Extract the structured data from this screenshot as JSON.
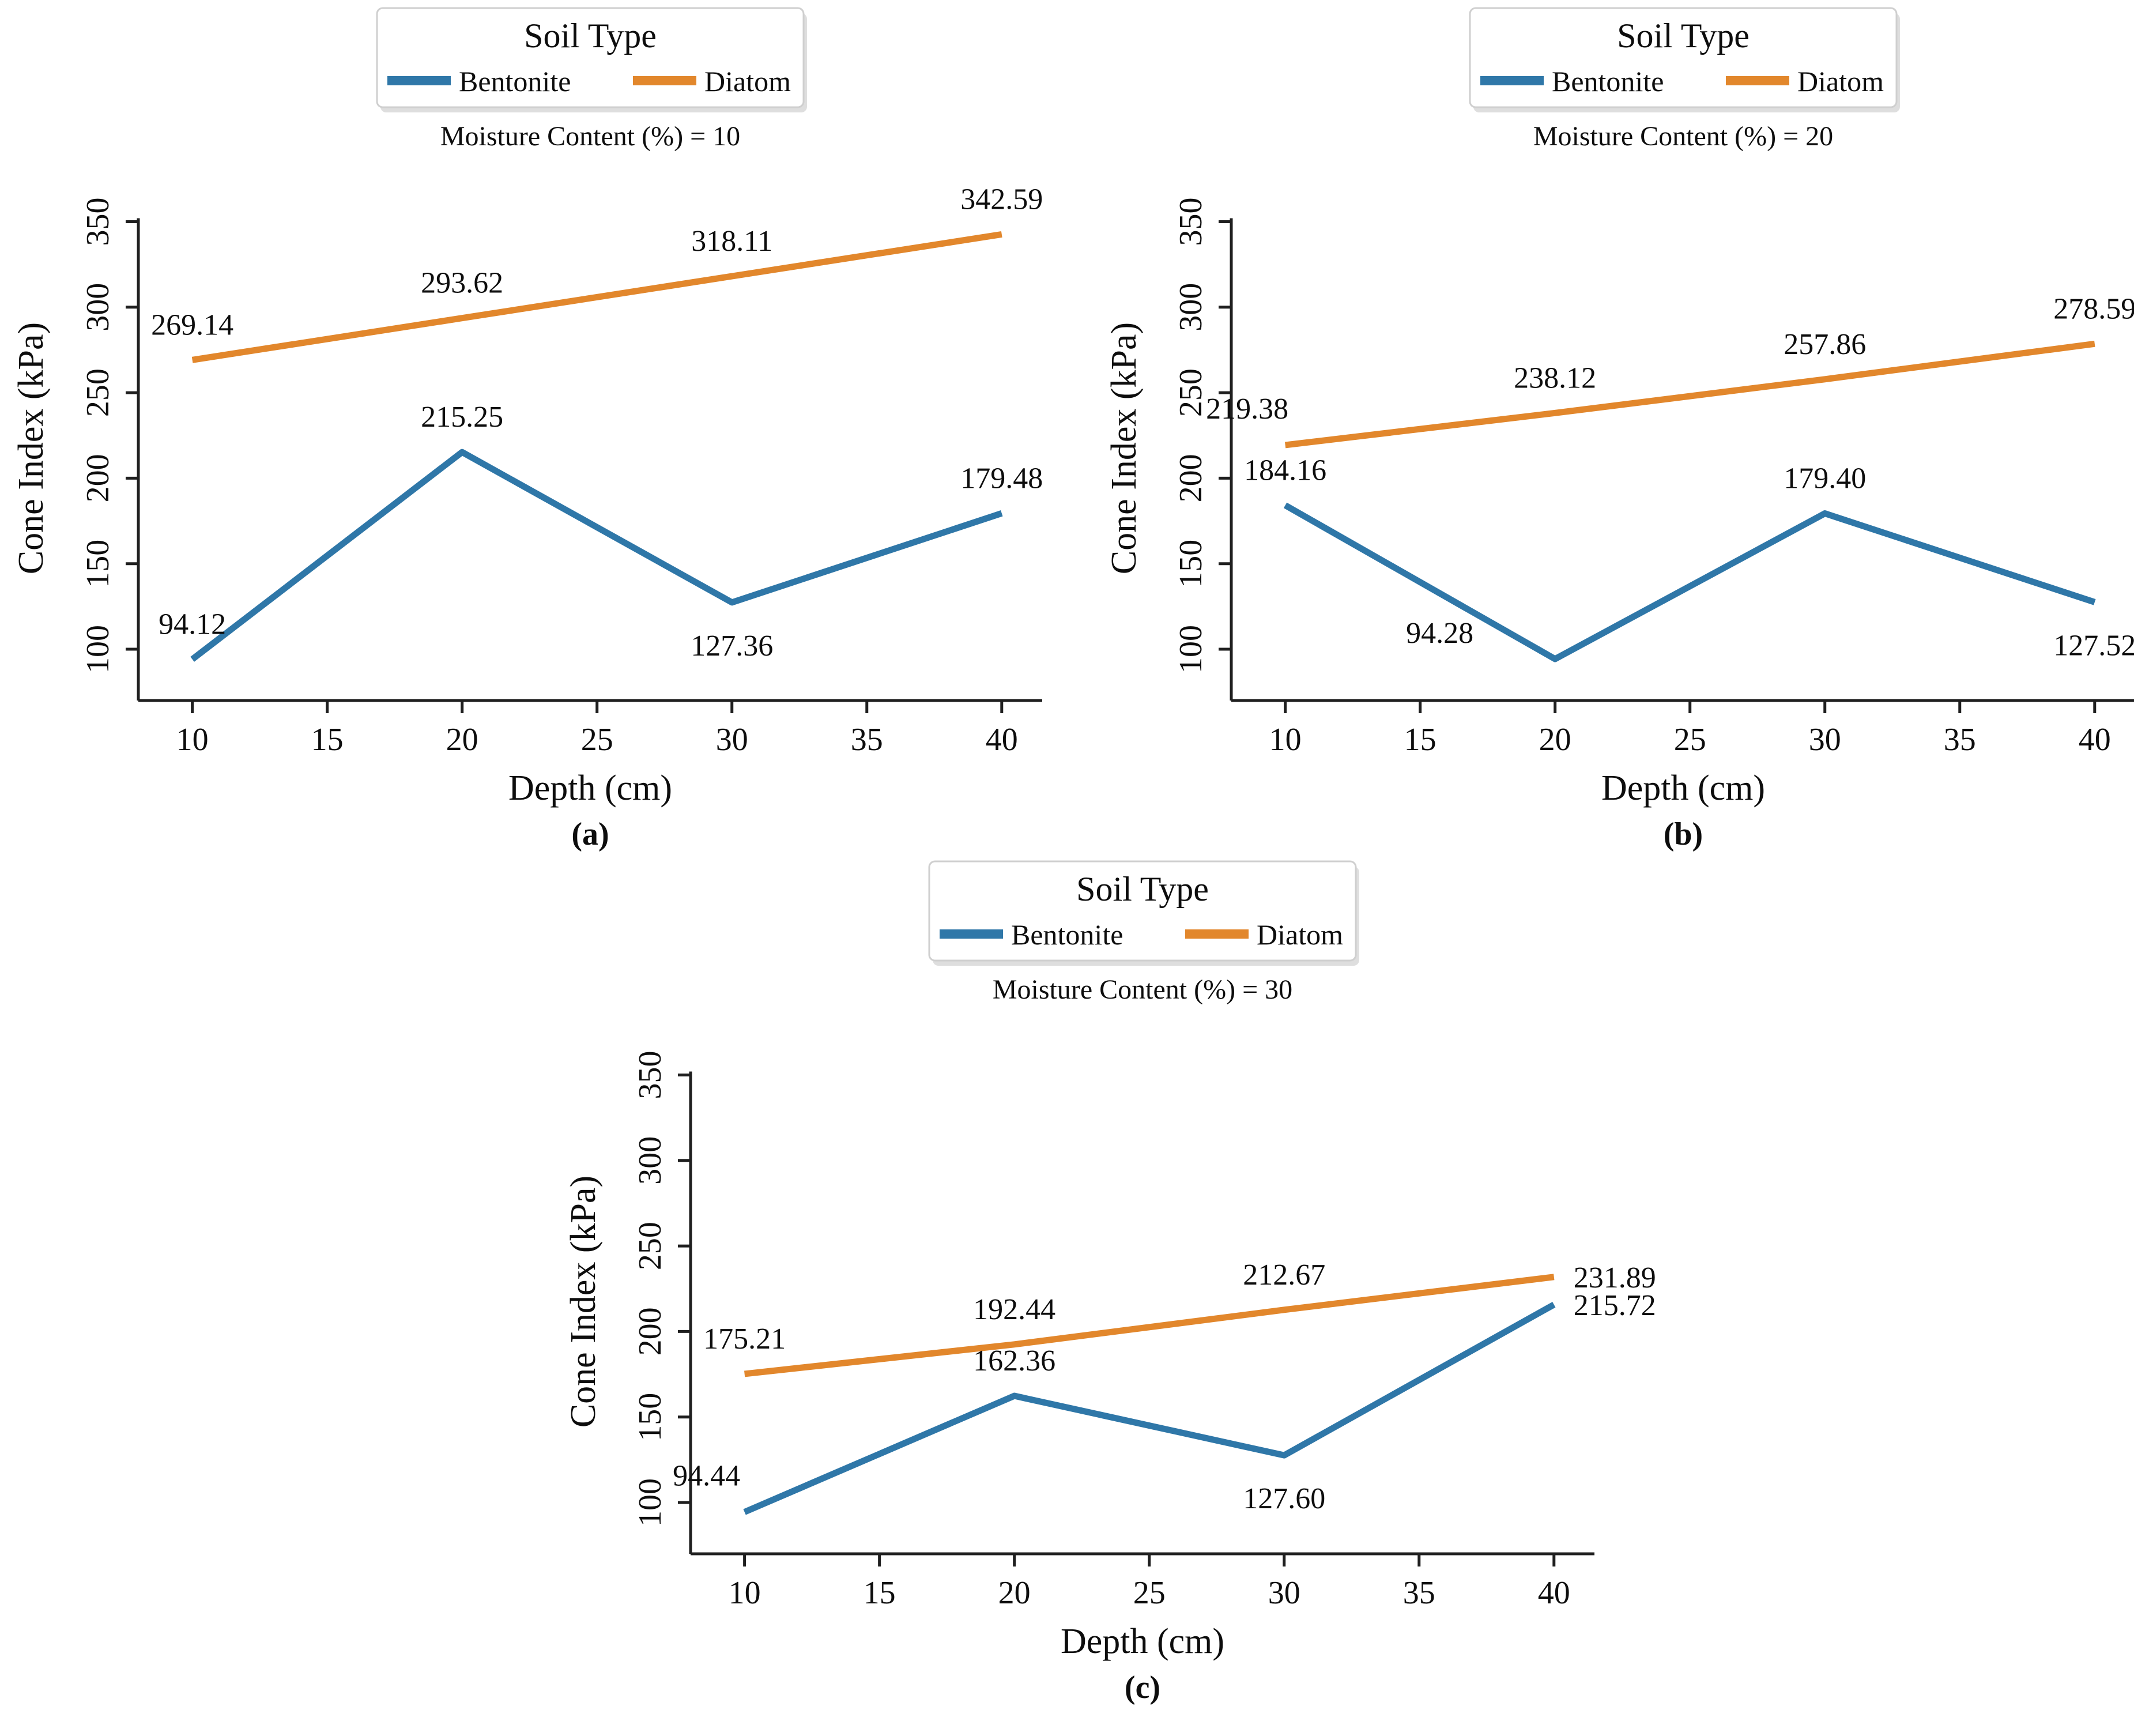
{
  "figure": {
    "legend_title": "Soil Type",
    "xlabel": "Depth (cm)",
    "ylabel": "Cone Index (kPa)",
    "colors": {
      "bentonite": "#2f77a8",
      "diatom": "#e2872c",
      "axis": "#1f1f1f",
      "text": "#0d0d0d",
      "legend_border": "#cfcfcf",
      "legend_shadow": "#dedede",
      "background": "#ffffff"
    }
  },
  "chart_data": [
    {
      "type": "line",
      "panel_label": "(a)",
      "subtitle": "Moisture Content (%) = 10",
      "title": "Soil Type",
      "xlabel": "Depth (cm)",
      "ylabel": "Cone Index (kPa)",
      "x": [
        10,
        20,
        30,
        40
      ],
      "xticks": [
        10,
        15,
        20,
        25,
        30,
        35,
        40
      ],
      "yticks": [
        100,
        150,
        200,
        250,
        300,
        350
      ],
      "xlim": [
        8,
        41.5
      ],
      "ylim": [
        70,
        365
      ],
      "grid": false,
      "legend_position": "top-center",
      "legend_entries": [
        "Bentonite",
        "Diatom"
      ],
      "series": [
        {
          "name": "Bentonite",
          "color_key": "bentonite",
          "values": [
            94.12,
            215.25,
            127.36,
            179.48
          ],
          "label_pos": [
            "above",
            "above",
            "below",
            "above"
          ]
        },
        {
          "name": "Diatom",
          "color_key": "diatom",
          "values": [
            269.14,
            293.62,
            318.11,
            342.59
          ],
          "label_pos": [
            "above",
            "above",
            "above",
            "above"
          ]
        }
      ]
    },
    {
      "type": "line",
      "panel_label": "(b)",
      "subtitle": "Moisture Content (%) = 20",
      "title": "Soil Type",
      "xlabel": "Depth (cm)",
      "ylabel": "Cone Index (kPa)",
      "x": [
        10,
        20,
        30,
        40
      ],
      "xticks": [
        10,
        15,
        20,
        25,
        30,
        35,
        40
      ],
      "yticks": [
        100,
        150,
        200,
        250,
        300,
        350
      ],
      "xlim": [
        8,
        41.5
      ],
      "ylim": [
        70,
        365
      ],
      "grid": false,
      "legend_position": "top-center",
      "legend_entries": [
        "Bentonite",
        "Diatom"
      ],
      "series": [
        {
          "name": "Bentonite",
          "color_key": "bentonite",
          "values": [
            184.16,
            94.28,
            179.4,
            127.52
          ],
          "label_pos": [
            "above",
            "above-left-far",
            "above",
            "below"
          ]
        },
        {
          "name": "Diatom",
          "color_key": "diatom",
          "values": [
            219.38,
            238.12,
            257.86,
            278.59
          ],
          "label_pos": [
            "above-left",
            "above",
            "above",
            "above"
          ]
        }
      ]
    },
    {
      "type": "line",
      "panel_label": "(c)",
      "subtitle": "Moisture Content (%) = 30",
      "title": "Soil Type",
      "xlabel": "Depth (cm)",
      "ylabel": "Cone Index (kPa)",
      "x": [
        10,
        20,
        30,
        40
      ],
      "xticks": [
        10,
        15,
        20,
        25,
        30,
        35,
        40
      ],
      "yticks": [
        100,
        150,
        200,
        250,
        300,
        350
      ],
      "xlim": [
        8,
        41.5
      ],
      "ylim": [
        70,
        365
      ],
      "grid": false,
      "legend_position": "top-center",
      "legend_entries": [
        "Bentonite",
        "Diatom"
      ],
      "series": [
        {
          "name": "Bentonite",
          "color_key": "bentonite",
          "values": [
            94.44,
            162.36,
            127.6,
            215.72
          ],
          "label_pos": [
            "above-left",
            "above",
            "below",
            "right"
          ]
        },
        {
          "name": "Diatom",
          "color_key": "diatom",
          "values": [
            175.21,
            192.44,
            212.67,
            231.89
          ],
          "label_pos": [
            "above",
            "above",
            "above",
            "right"
          ]
        }
      ]
    }
  ]
}
